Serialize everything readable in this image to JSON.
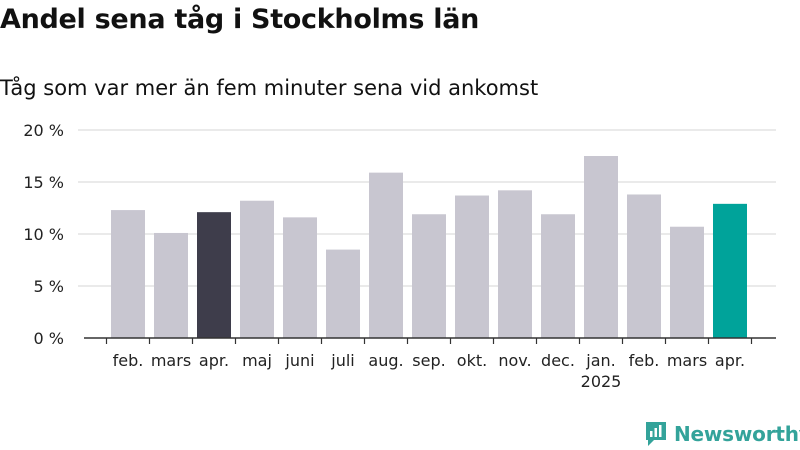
{
  "title": "Andel sena tåg i Stockholms län",
  "subtitle": "Tåg som var mer än fem minuter sena vid ankomst",
  "brand": {
    "name": "Newsworthy",
    "icon": "newsworthy-logo-icon"
  },
  "colors": {
    "bar": "#c8c6d0",
    "highlight_previous": "#3e3d4b",
    "highlight_current": "#00a39a",
    "grid": "#dddddd",
    "axis": "#333333"
  },
  "chart_data": {
    "type": "bar",
    "title": "Andel sena tåg i Stockholms län",
    "subtitle": "Tåg som var mer än fem minuter sena vid ankomst",
    "xlabel": "",
    "ylabel": "",
    "categories": [
      "feb.",
      "mars",
      "apr.",
      "maj",
      "juni",
      "juli",
      "aug.",
      "sep.",
      "okt.",
      "nov.",
      "dec.",
      "jan.",
      "feb.",
      "mars",
      "apr."
    ],
    "year_labels": [
      "",
      "",
      "",
      "",
      "",
      "",
      "",
      "",
      "",
      "",
      "",
      "2025",
      "",
      "",
      ""
    ],
    "values": [
      12.3,
      10.1,
      12.1,
      13.2,
      11.6,
      8.5,
      15.9,
      11.9,
      13.7,
      14.2,
      11.9,
      17.5,
      13.8,
      10.7,
      12.9
    ],
    "highlight": [
      "",
      "",
      "previous",
      "",
      "",
      "",
      "",
      "",
      "",
      "",
      "",
      "",
      "",
      "",
      "current"
    ],
    "ylim": [
      0,
      20
    ],
    "yticks": [
      0,
      5,
      10,
      15,
      20
    ],
    "ytick_labels": [
      "0 %",
      "5 %",
      "10 %",
      "15 %",
      "20 %"
    ],
    "grid": true,
    "legend": "none"
  }
}
